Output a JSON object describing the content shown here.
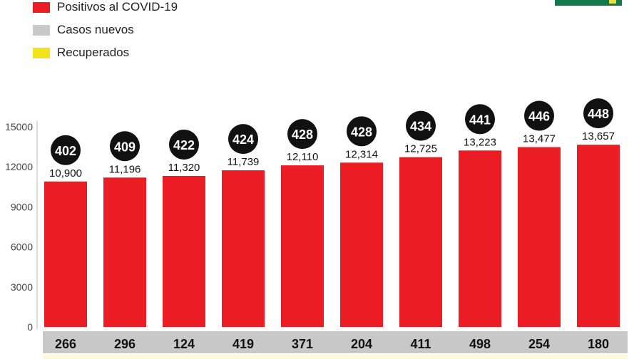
{
  "chart_data": {
    "type": "bar",
    "legend": [
      {
        "name": "Positivos al COVID-19",
        "color": "#ec1c24"
      },
      {
        "name": "Casos nuevos",
        "color": "#c8c8c8"
      },
      {
        "name": "Recuperados",
        "color": "#f2e31b"
      }
    ],
    "legend_position": "top-left",
    "ylim": [
      0,
      15000
    ],
    "yticks": [
      0,
      3000,
      6000,
      9000,
      12000,
      15000
    ],
    "series": [
      {
        "name": "Positivos al COVID-19",
        "values": [
          10900,
          11196,
          11320,
          11739,
          12110,
          12314,
          12725,
          13223,
          13477,
          13657
        ],
        "labels": [
          "10,900",
          "11,196",
          "11,320",
          "11,739",
          "12,110",
          "12,314",
          "12,725",
          "13,223",
          "13,477",
          "13,657"
        ]
      },
      {
        "name": "Casos nuevos",
        "values": [
          266,
          296,
          124,
          419,
          371,
          204,
          411,
          498,
          254,
          180
        ]
      }
    ],
    "circle_values": [
      402,
      409,
      422,
      424,
      428,
      428,
      434,
      441,
      446,
      448
    ],
    "grid": false
  },
  "colors": {
    "bar": "#ec1c24",
    "circle": "#111111",
    "band": "#c8c8c8",
    "brand": "#127a4a"
  }
}
